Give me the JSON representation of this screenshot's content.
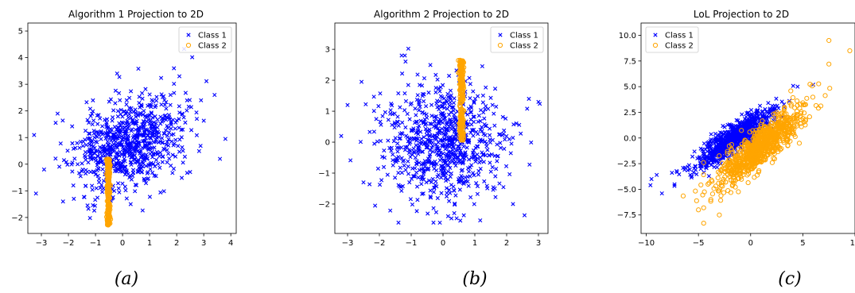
{
  "chart_data": [
    {
      "type": "scatter",
      "title": "Algorithm 1 Projection to 2D",
      "caption": "(a)",
      "xlim": [
        -3.5,
        4.2
      ],
      "ylim": [
        -2.6,
        5.3
      ],
      "xticks": [
        -3,
        -2,
        -1,
        0,
        1,
        2,
        3,
        4
      ],
      "yticks": [
        -2,
        -1,
        0,
        1,
        2,
        3,
        4,
        5
      ],
      "legend_position": "top-right",
      "legend": [
        "Class 1",
        "Class 2"
      ],
      "series": [
        {
          "name": "Class 1",
          "marker": "x",
          "color": "#0000ff",
          "dist": {
            "type": "gauss2d",
            "n": 800,
            "mx": 0.2,
            "my": 0.8,
            "sx": 1.0,
            "sy": 0.9,
            "rho": 0.3,
            "seed": 11
          },
          "points": [
            [
              -3.2,
              -1.1
            ],
            [
              -2.9,
              -0.2
            ],
            [
              -2.4,
              1.9
            ],
            [
              -2.2,
              -1.4
            ],
            [
              1.9,
              3.6
            ],
            [
              2.1,
              3.3
            ],
            [
              3.4,
              2.6
            ],
            [
              3.8,
              0.95
            ],
            [
              3.6,
              0.2
            ],
            [
              0.3,
              -1.5
            ],
            [
              -1.8,
              -1.3
            ],
            [
              2.9,
              2.4
            ]
          ]
        },
        {
          "name": "Class 2",
          "marker": "o",
          "color": "#ffa500",
          "dist": {
            "type": "vline",
            "n": 250,
            "x": -0.52,
            "xspread": 0.03,
            "ymin": -2.3,
            "ymax": 0.2,
            "seed": 21
          }
        }
      ]
    },
    {
      "type": "scatter",
      "title": "Algorithm 2 Projection to 2D",
      "caption": "(b)",
      "xlim": [
        -3.4,
        3.3
      ],
      "ylim": [
        -2.95,
        3.85
      ],
      "xticks": [
        -3,
        -2,
        -1,
        0,
        1,
        2,
        3
      ],
      "yticks": [
        -2,
        -1,
        0,
        1,
        2,
        3
      ],
      "legend_position": "top-right",
      "legend": [
        "Class 1",
        "Class 2"
      ],
      "series": [
        {
          "name": "Class 1",
          "marker": "x",
          "color": "#0000ff",
          "dist": {
            "type": "gauss2d",
            "n": 800,
            "mx": 0.0,
            "my": 0.0,
            "sx": 0.95,
            "sy": 0.95,
            "rho": 0.0,
            "seed": 33
          },
          "points": [
            [
              -3.2,
              0.2
            ],
            [
              -3.0,
              1.2
            ],
            [
              -1.3,
              2.8
            ],
            [
              -1.2,
              2.8
            ],
            [
              2.7,
              1.4
            ],
            [
              3.0,
              1.3
            ],
            [
              -1.4,
              -2.6
            ],
            [
              -0.3,
              -2.6
            ],
            [
              2.2,
              -2.0
            ],
            [
              -2.5,
              -1.3
            ]
          ]
        },
        {
          "name": "Class 2",
          "marker": "o",
          "color": "#ffa500",
          "dist": {
            "type": "vline",
            "n": 250,
            "x": 0.58,
            "xspread": 0.03,
            "ymin": 0.05,
            "ymax": 2.65,
            "seed": 44
          }
        }
      ]
    },
    {
      "type": "scatter",
      "title": "LoL Projection to 2D",
      "caption": "(c)",
      "xlim": [
        -10.5,
        10.0
      ],
      "ylim": [
        -9.3,
        11.2
      ],
      "xticks": [
        -10,
        -5,
        0,
        5,
        10
      ],
      "xticklabels": [
        "−10",
        "−5",
        "0",
        "5",
        "10"
      ],
      "yticks": [
        -7.5,
        -5.0,
        -2.5,
        0.0,
        2.5,
        5.0,
        7.5,
        10.0
      ],
      "yticklabels": [
        "−7.5",
        "−5.0",
        "−2.5",
        "0.0",
        "2.5",
        "5.0",
        "7.5",
        "10.0"
      ],
      "legend_position": "top-left",
      "legend": [
        "Class 1",
        "Class 2"
      ],
      "series": [
        {
          "name": "Class 1",
          "marker": "x",
          "color": "#0000ff",
          "dist": {
            "type": "line",
            "n": 900,
            "mx": -1.5,
            "my": 0.0,
            "st": 2.3,
            "slope": 0.72,
            "sperp": 0.55,
            "seed": 55
          },
          "points": [
            [
              -9.5,
              -4.0
            ],
            [
              -9.0,
              -3.6
            ],
            [
              -9.6,
              -4.6
            ],
            [
              4.5,
              5.0
            ],
            [
              6.0,
              5.2
            ],
            [
              -8.5,
              -5.4
            ]
          ]
        },
        {
          "name": "Class 2",
          "marker": "o",
          "color": "#ffa500",
          "dist": {
            "type": "line",
            "n": 900,
            "mx": 1.0,
            "my": -0.8,
            "st": 2.6,
            "slope": 0.92,
            "sperp": 0.7,
            "seed": 66
          },
          "points": [
            [
              7.5,
              9.5
            ],
            [
              9.5,
              8.5
            ],
            [
              7.5,
              7.2
            ],
            [
              -4.5,
              -8.3
            ],
            [
              -4.5,
              -6.8
            ],
            [
              -5.0,
              -7.0
            ],
            [
              -3.0,
              -7.5
            ]
          ]
        }
      ]
    }
  ]
}
